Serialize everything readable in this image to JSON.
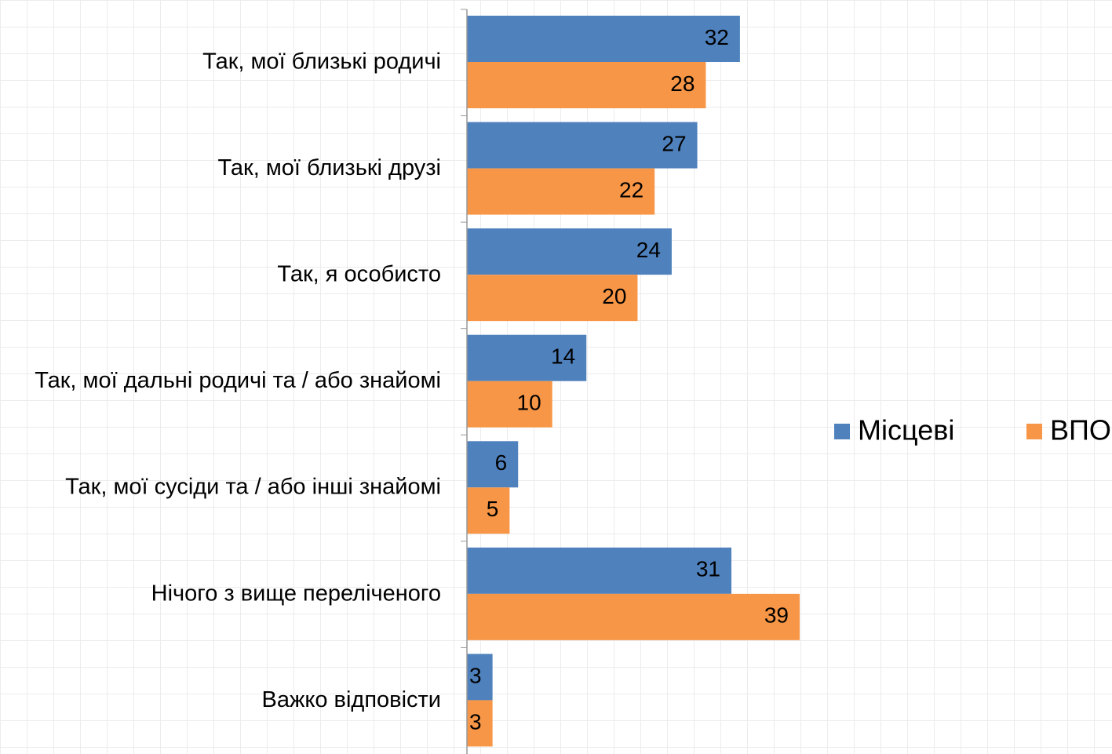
{
  "chart_data": {
    "type": "hbar",
    "categories": [
      "Так, мої близькі родичі",
      "Так, мої близькі друзі",
      "Так, я особисто",
      "Так, мої дальні родичі та / або знайомі",
      "Так, мої сусіди та / або інші знайомі",
      "Нічого з вище переліченого",
      "Важко відповісти"
    ],
    "series": [
      {
        "name": "Місцеві",
        "color": "#4f81bd",
        "values": [
          32,
          27,
          24,
          14,
          6,
          31,
          3
        ]
      },
      {
        "name": "ВПО",
        "color": "#f79646",
        "values": [
          28,
          22,
          20,
          10,
          5,
          39,
          3
        ]
      }
    ],
    "legend": "right"
  }
}
